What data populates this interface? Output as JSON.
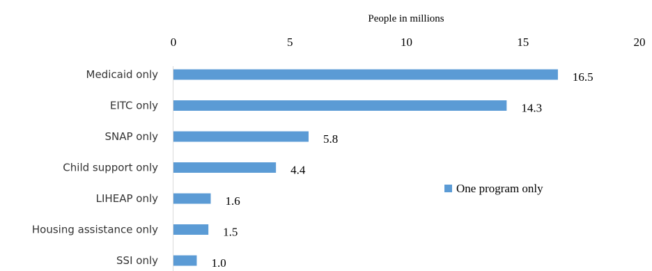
{
  "chart_data": {
    "type": "bar",
    "orientation": "horizontal",
    "xlabel": "People in millions",
    "xaxis_position": "top",
    "xlim": [
      0,
      20
    ],
    "xticks": [
      "0",
      "5",
      "10",
      "15",
      "20"
    ],
    "categories": [
      "Medicaid only",
      "EITC only",
      "SNAP only",
      "Child support only",
      "LIHEAP only",
      "Housing assistance only",
      "SSI only"
    ],
    "series": [
      {
        "name": "One program only",
        "values": [
          16.5,
          14.3,
          5.8,
          4.4,
          1.6,
          1.5,
          1.0
        ],
        "labels": [
          "16.5",
          "14.3",
          "5.8",
          "4.4",
          "1.6",
          "1.5",
          "1.0"
        ],
        "color": "#5b9bd5"
      }
    ],
    "legend": "right",
    "grid": false
  }
}
